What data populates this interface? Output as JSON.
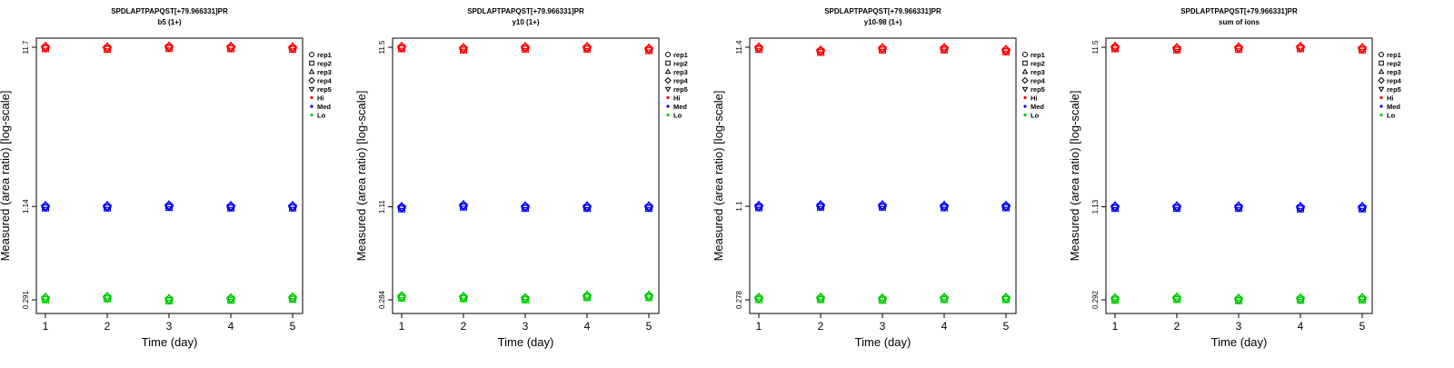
{
  "ylabel": "Measured (area ratio) [log-scale]",
  "xlabel": "Time (day)",
  "legend": {
    "entries": [
      {
        "label": "rep1",
        "symbol": "circle",
        "color": "#000000"
      },
      {
        "label": "rep2",
        "symbol": "square",
        "color": "#000000"
      },
      {
        "label": "rep3",
        "symbol": "triangle-up",
        "color": "#000000"
      },
      {
        "label": "rep4",
        "symbol": "diamond",
        "color": "#000000"
      },
      {
        "label": "rep5",
        "symbol": "triangle-down",
        "color": "#000000"
      },
      {
        "label": "Hi",
        "symbol": "dot",
        "color": "#ff0000"
      },
      {
        "label": "Med",
        "symbol": "dot",
        "color": "#0000ff"
      },
      {
        "label": "Lo",
        "symbol": "dot",
        "color": "#00cc00"
      }
    ]
  },
  "colors": {
    "Hi": "#ff0000",
    "Med": "#0000ff",
    "Lo": "#00cc00"
  },
  "chart_data": [
    {
      "type": "scatter",
      "title": "SPDLAPTPAPQST[+79.966331]PR",
      "subtitle": "b5 (1+)",
      "xlabel": "Time (day)",
      "ylabel": "Measured (area ratio) [log-scale]",
      "x": [
        1,
        2,
        3,
        4,
        5
      ],
      "yticks": [
        "0.291",
        "1.14",
        "11.7"
      ],
      "log_scale_y": true,
      "ylim": [
        0.291,
        11.7
      ],
      "series": [
        {
          "group": "Hi",
          "values": [
            11.7,
            11.6,
            11.75,
            11.7,
            11.6
          ]
        },
        {
          "group": "Med",
          "values": [
            1.14,
            1.14,
            1.15,
            1.14,
            1.14
          ]
        },
        {
          "group": "Lo",
          "values": [
            0.298,
            0.302,
            0.293,
            0.296,
            0.3
          ]
        }
      ]
    },
    {
      "type": "scatter",
      "title": "SPDLAPTPAPQST[+79.966331]PR",
      "subtitle": "y10 (1+)",
      "xlabel": "Time (day)",
      "ylabel": "Measured (area ratio) [log-scale]",
      "x": [
        1,
        2,
        3,
        4,
        5
      ],
      "yticks": [
        "0.284",
        "1.11",
        "11.5"
      ],
      "log_scale_y": true,
      "ylim": [
        0.284,
        11.5
      ],
      "series": [
        {
          "group": "Hi",
          "values": [
            11.5,
            11.3,
            11.45,
            11.45,
            11.2
          ]
        },
        {
          "group": "Med",
          "values": [
            1.1,
            1.13,
            1.11,
            1.11,
            1.11
          ]
        },
        {
          "group": "Lo",
          "values": [
            0.298,
            0.295,
            0.29,
            0.3,
            0.3
          ]
        }
      ]
    },
    {
      "type": "scatter",
      "title": "SPDLAPTPAPQST[+79.966331]PR",
      "subtitle": "y10-98 (1+)",
      "xlabel": "Time (day)",
      "ylabel": "Measured (area ratio) [log-scale]",
      "x": [
        1,
        2,
        3,
        4,
        5
      ],
      "yticks": [
        "0.278",
        "1.1",
        "11.4"
      ],
      "log_scale_y": true,
      "ylim": [
        0.278,
        11.4
      ],
      "series": [
        {
          "group": "Hi",
          "values": [
            11.3,
            10.8,
            11.2,
            11.2,
            10.9
          ]
        },
        {
          "group": "Med",
          "values": [
            1.1,
            1.11,
            1.11,
            1.1,
            1.1
          ]
        },
        {
          "group": "Lo",
          "values": [
            0.285,
            0.285,
            0.282,
            0.285,
            0.285
          ]
        }
      ]
    },
    {
      "type": "scatter",
      "title": "SPDLAPTPAPQST[+79.966331]PR",
      "subtitle": "sum of ions",
      "xlabel": "Time (day)",
      "ylabel": "Measured (area ratio) [log-scale]",
      "x": [
        1,
        2,
        3,
        4,
        5
      ],
      "yticks": [
        "0.292",
        "1.13",
        "11.5"
      ],
      "log_scale_y": true,
      "ylim": [
        0.292,
        11.5
      ],
      "series": [
        {
          "group": "Hi",
          "values": [
            11.5,
            11.3,
            11.4,
            11.5,
            11.3
          ]
        },
        {
          "group": "Med",
          "values": [
            1.13,
            1.13,
            1.13,
            1.12,
            1.12
          ]
        },
        {
          "group": "Lo",
          "values": [
            0.297,
            0.3,
            0.295,
            0.297,
            0.298
          ]
        }
      ]
    }
  ]
}
